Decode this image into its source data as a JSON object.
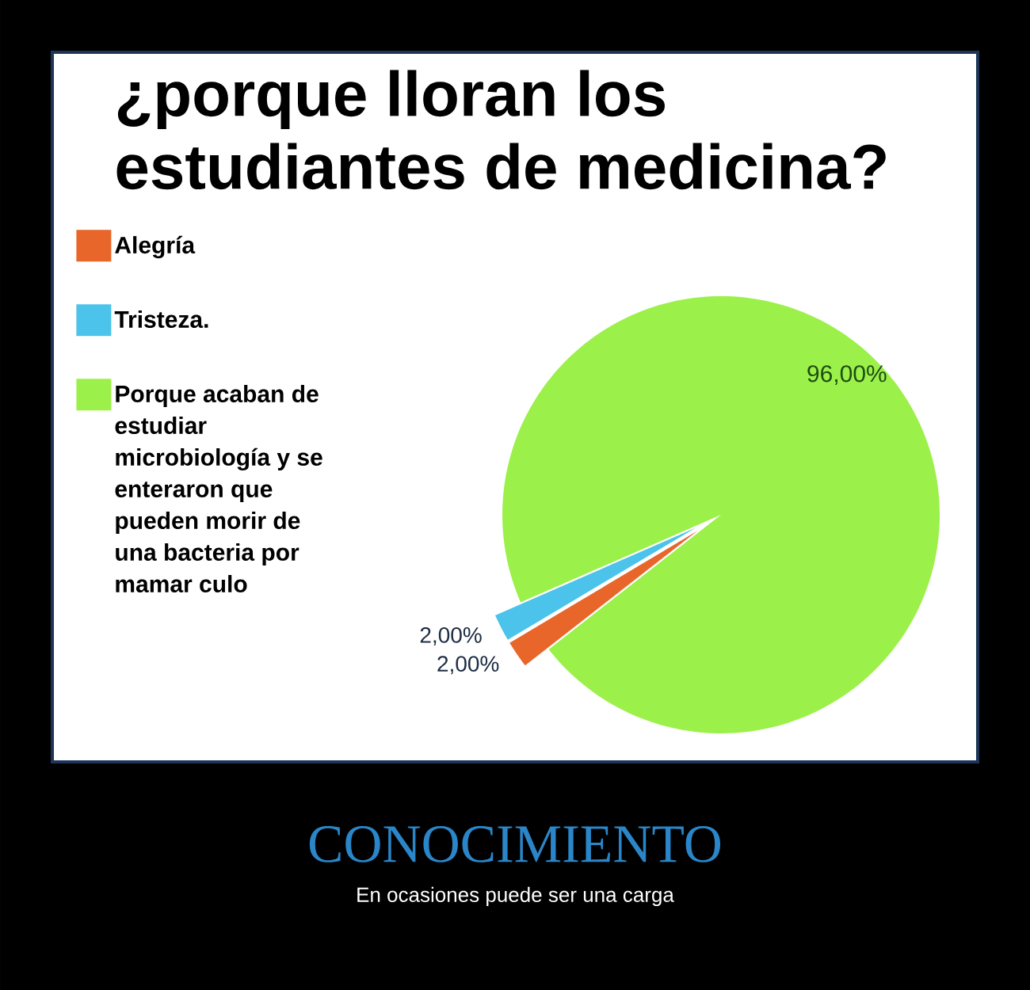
{
  "chart_data": {
    "type": "pie",
    "title": "¿porque lloran los estudiantes de medicina?",
    "categories": [
      "Alegría",
      "Tristeza.",
      "Porque acaban de estudiar microbiología y se enteraron que pueden morir de una bacteria por mamar culo"
    ],
    "values": [
      2,
      2,
      96
    ],
    "colors": [
      "#e8662a",
      "#4cc3ea",
      "#9cf04a"
    ],
    "value_labels": [
      "2,00%",
      "2,00%",
      "96,00%"
    ],
    "legend": "top left",
    "annotations": [
      "CONOCIMIENTO",
      "En ocasiones puede ser una carga"
    ]
  }
}
